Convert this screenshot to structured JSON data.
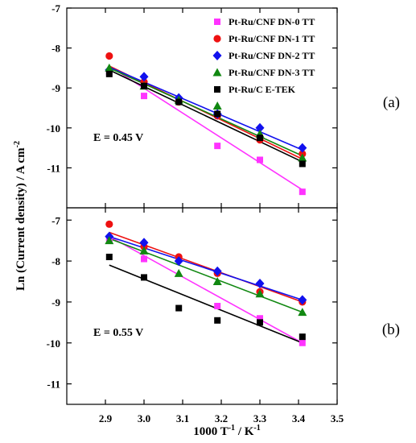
{
  "chart_data": [
    {
      "type": "scatter",
      "panel_label": "(a)",
      "annotation": "E = 0.45 V",
      "xlim": [
        2.8,
        3.5
      ],
      "ylim": [
        -12,
        -7
      ],
      "yticks": [
        "-7",
        "-8",
        "-9",
        "-10",
        "-11"
      ],
      "ytick_values": [
        -7,
        -8,
        -9,
        -10,
        -11
      ],
      "series": [
        {
          "name": "Pt-Ru/CNF DN-0 TT",
          "color": "#ff33ff",
          "marker": "square",
          "x": [
            2.91,
            3.0,
            3.19,
            3.3,
            3.41
          ],
          "y": [
            -8.6,
            -9.2,
            -10.45,
            -10.8,
            -11.6
          ],
          "fit": [
            [
              2.91,
              -8.45
            ],
            [
              3.41,
              -11.55
            ]
          ]
        },
        {
          "name": "Pt-Ru/CNF DN-1 TT",
          "color": "#ee1111",
          "marker": "circle",
          "x": [
            2.91,
            3.0,
            3.09,
            3.19,
            3.3,
            3.41
          ],
          "y": [
            -8.2,
            -8.85,
            -9.35,
            -9.7,
            -10.3,
            -10.65
          ],
          "fit": [
            [
              2.91,
              -8.45
            ],
            [
              3.41,
              -10.78
            ]
          ]
        },
        {
          "name": "Pt-Ru/CNF DN-2 TT",
          "color": "#1111ee",
          "marker": "diamond",
          "x": [
            2.91,
            3.0,
            3.09,
            3.19,
            3.3,
            3.41
          ],
          "y": [
            -8.55,
            -8.72,
            -9.25,
            -9.65,
            -10.0,
            -10.5
          ],
          "fit": [
            [
              2.91,
              -8.48
            ],
            [
              3.41,
              -10.55
            ]
          ]
        },
        {
          "name": "Pt-Ru/CNF DN-3 TT",
          "color": "#118811",
          "marker": "triangle",
          "x": [
            2.91,
            3.0,
            3.09,
            3.19,
            3.3,
            3.41
          ],
          "y": [
            -8.5,
            -8.95,
            -9.3,
            -9.45,
            -10.15,
            -10.75
          ],
          "fit": [
            [
              2.91,
              -8.5
            ],
            [
              3.41,
              -10.7
            ]
          ]
        },
        {
          "name": "Pt-Ru/C E-TEK",
          "color": "#000000",
          "marker": "square",
          "x": [
            2.91,
            3.0,
            3.09,
            3.19,
            3.3,
            3.41
          ],
          "y": [
            -8.65,
            -8.95,
            -9.35,
            -9.65,
            -10.25,
            -10.9
          ],
          "fit": [
            [
              2.91,
              -8.55
            ],
            [
              3.41,
              -10.85
            ]
          ]
        }
      ]
    },
    {
      "type": "scatter",
      "panel_label": "(b)",
      "annotation": "E = 0.55 V",
      "xlim": [
        2.8,
        3.5
      ],
      "ylim": [
        -11.5,
        -6.7
      ],
      "yticks": [
        "-7",
        "-8",
        "-9",
        "-10",
        "-11"
      ],
      "ytick_values": [
        -7,
        -8,
        -9,
        -10,
        -11
      ],
      "xticks": [
        "2.9",
        "3.0",
        "3.1",
        "3.2",
        "3.3",
        "3.4",
        "3.5"
      ],
      "xtick_values": [
        2.9,
        3.0,
        3.1,
        3.2,
        3.3,
        3.4,
        3.5
      ],
      "series": [
        {
          "name": "Pt-Ru/CNF DN-0 TT",
          "color": "#ff33ff",
          "marker": "square",
          "x": [
            2.91,
            3.0,
            3.19,
            3.3,
            3.41
          ],
          "y": [
            -7.45,
            -7.95,
            -9.1,
            -9.4,
            -10.0
          ],
          "fit": [
            [
              2.91,
              -7.4
            ],
            [
              3.41,
              -10.0
            ]
          ]
        },
        {
          "name": "Pt-Ru/CNF DN-1 TT",
          "color": "#ee1111",
          "marker": "circle",
          "x": [
            2.91,
            3.0,
            3.09,
            3.19,
            3.3,
            3.41
          ],
          "y": [
            -7.1,
            -7.65,
            -7.9,
            -8.3,
            -8.75,
            -9.0
          ],
          "fit": [
            [
              2.91,
              -7.3
            ],
            [
              3.41,
              -9.0
            ]
          ]
        },
        {
          "name": "Pt-Ru/CNF DN-2 TT",
          "color": "#1111ee",
          "marker": "diamond",
          "x": [
            2.91,
            3.0,
            3.09,
            3.19,
            3.3,
            3.41
          ],
          "y": [
            -7.4,
            -7.55,
            -8.0,
            -8.25,
            -8.55,
            -8.95
          ],
          "fit": [
            [
              2.91,
              -7.4
            ],
            [
              3.41,
              -8.95
            ]
          ]
        },
        {
          "name": "Pt-Ru/CNF DN-3 TT",
          "color": "#118811",
          "marker": "triangle",
          "x": [
            2.91,
            3.0,
            3.09,
            3.19,
            3.3,
            3.41
          ],
          "y": [
            -7.5,
            -7.75,
            -8.3,
            -8.5,
            -8.8,
            -9.25
          ],
          "fit": [
            [
              2.91,
              -7.45
            ],
            [
              3.41,
              -9.25
            ]
          ]
        },
        {
          "name": "Pt-Ru/C E-TEK",
          "color": "#000000",
          "marker": "square",
          "x": [
            2.91,
            3.0,
            3.09,
            3.19,
            3.3,
            3.41
          ],
          "y": [
            -7.9,
            -8.4,
            -9.15,
            -9.45,
            -9.5,
            -9.85
          ],
          "fit": [
            [
              2.91,
              -8.1
            ],
            [
              3.41,
              -10.0
            ]
          ]
        }
      ]
    }
  ],
  "xlabel_main": "1000 T",
  "xlabel_sup1": "-1",
  "xlabel_mid": " / K",
  "xlabel_sup2": "-1",
  "ylabel_main": "Ln (Current density) / A cm",
  "ylabel_sup": "-2"
}
